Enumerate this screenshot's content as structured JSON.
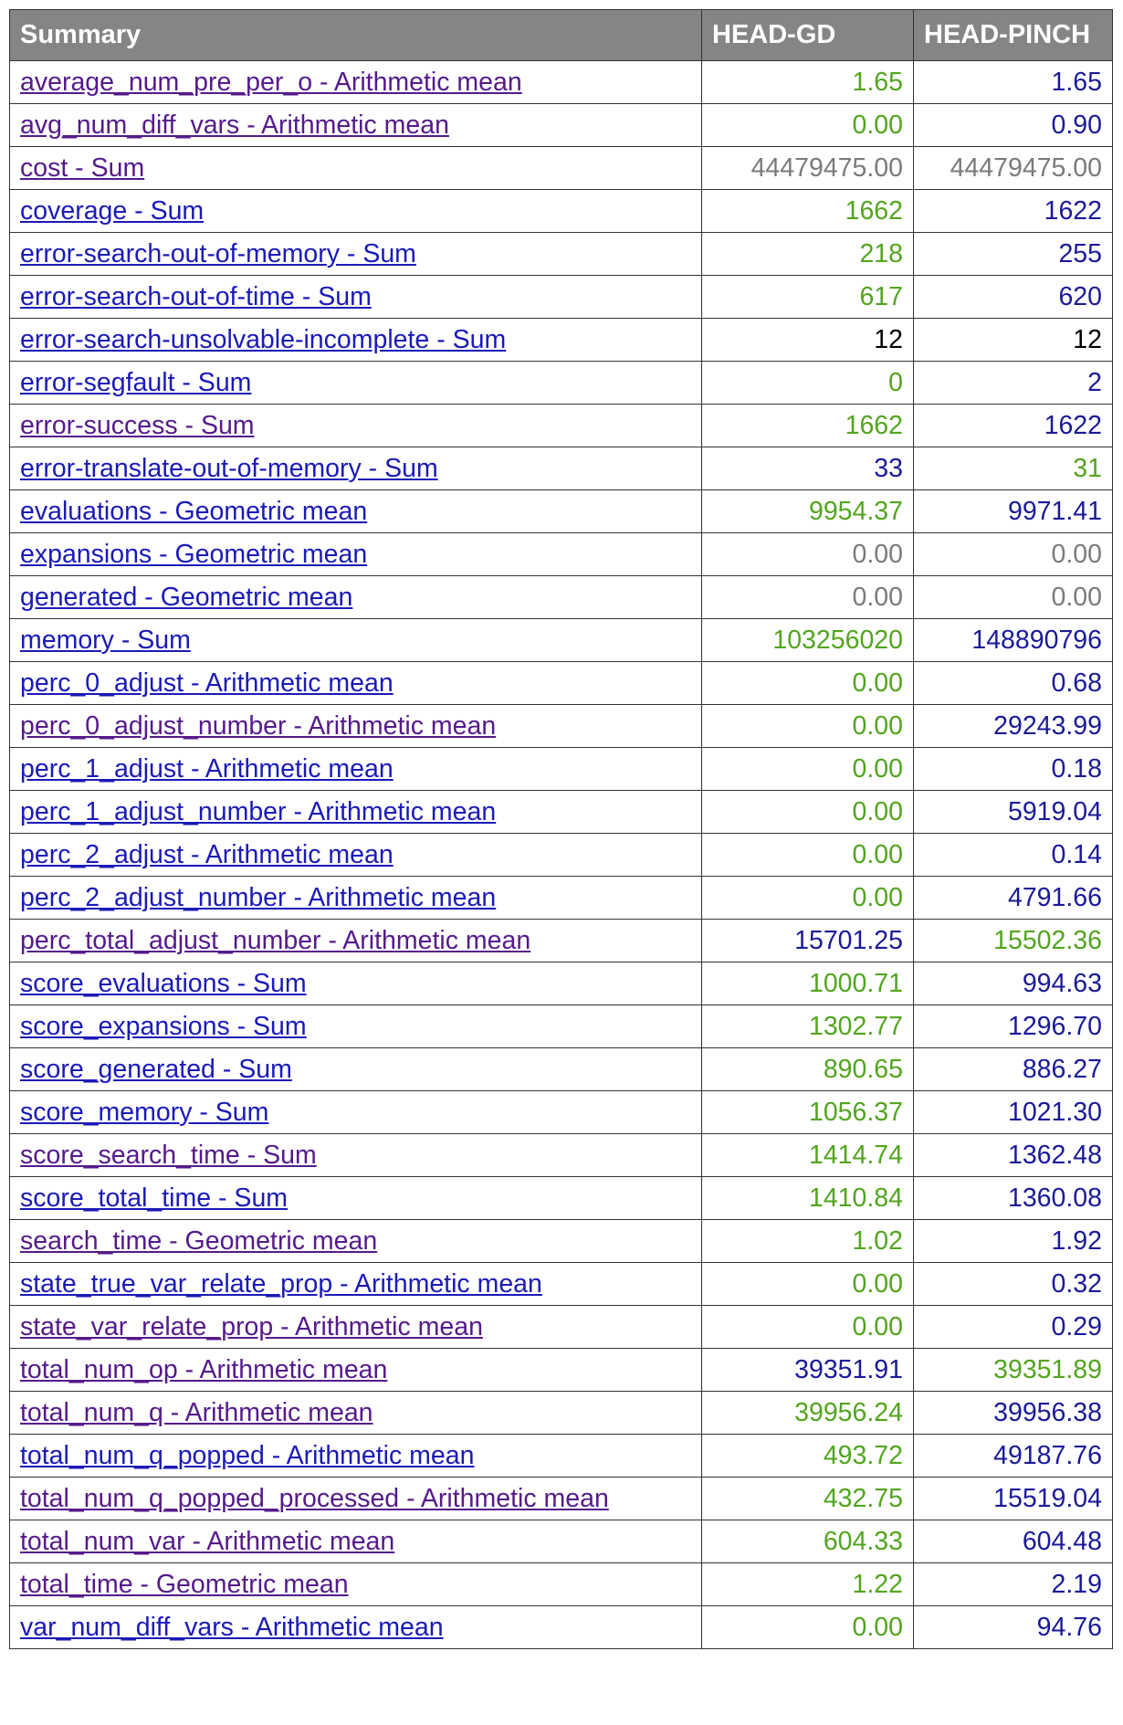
{
  "table": {
    "headers": [
      "Summary",
      "HEAD-GD",
      "HEAD-PINCH"
    ],
    "colors": {
      "green": "#52a51e",
      "blue": "#1a1a99",
      "grey": "#7a7a7a",
      "black": "#000000",
      "link": "#1a1ab8",
      "visited_link": "#551a8b",
      "header_bg": "#858585"
    },
    "rows": [
      {
        "name": "average_num_pre_per_o - Arithmetic mean",
        "link": "visited",
        "gd": "1.65",
        "gd_color": "green",
        "pinch": "1.65",
        "pinch_color": "blue"
      },
      {
        "name": "avg_num_diff_vars - Arithmetic mean",
        "link": "visited",
        "gd": "0.00",
        "gd_color": "green",
        "pinch": "0.90",
        "pinch_color": "blue"
      },
      {
        "name": "cost - Sum",
        "link": "visited",
        "gd": "44479475.00",
        "gd_color": "grey",
        "pinch": "44479475.00",
        "pinch_color": "grey"
      },
      {
        "name": "coverage - Sum",
        "link": "unvisited",
        "gd": "1662",
        "gd_color": "green",
        "pinch": "1622",
        "pinch_color": "blue"
      },
      {
        "name": "error-search-out-of-memory - Sum",
        "link": "unvisited",
        "gd": "218",
        "gd_color": "green",
        "pinch": "255",
        "pinch_color": "blue"
      },
      {
        "name": "error-search-out-of-time - Sum",
        "link": "unvisited",
        "gd": "617",
        "gd_color": "green",
        "pinch": "620",
        "pinch_color": "blue"
      },
      {
        "name": "error-search-unsolvable-incomplete - Sum",
        "link": "unvisited",
        "gd": "12",
        "gd_color": "black",
        "pinch": "12",
        "pinch_color": "black"
      },
      {
        "name": "error-segfault - Sum",
        "link": "unvisited",
        "gd": "0",
        "gd_color": "green",
        "pinch": "2",
        "pinch_color": "blue"
      },
      {
        "name": "error-success - Sum",
        "link": "visited",
        "gd": "1662",
        "gd_color": "green",
        "pinch": "1622",
        "pinch_color": "blue"
      },
      {
        "name": "error-translate-out-of-memory - Sum",
        "link": "unvisited",
        "gd": "33",
        "gd_color": "blue",
        "pinch": "31",
        "pinch_color": "green"
      },
      {
        "name": "evaluations - Geometric mean",
        "link": "unvisited",
        "gd": "9954.37",
        "gd_color": "green",
        "pinch": "9971.41",
        "pinch_color": "blue"
      },
      {
        "name": "expansions - Geometric mean",
        "link": "unvisited",
        "gd": "0.00",
        "gd_color": "grey",
        "pinch": "0.00",
        "pinch_color": "grey"
      },
      {
        "name": "generated - Geometric mean",
        "link": "unvisited",
        "gd": "0.00",
        "gd_color": "grey",
        "pinch": "0.00",
        "pinch_color": "grey"
      },
      {
        "name": "memory - Sum",
        "link": "unvisited",
        "gd": "103256020",
        "gd_color": "green",
        "pinch": "148890796",
        "pinch_color": "blue"
      },
      {
        "name": "perc_0_adjust - Arithmetic mean",
        "link": "unvisited",
        "gd": "0.00",
        "gd_color": "green",
        "pinch": "0.68",
        "pinch_color": "blue"
      },
      {
        "name": "perc_0_adjust_number - Arithmetic mean",
        "link": "visited",
        "gd": "0.00",
        "gd_color": "green",
        "pinch": "29243.99",
        "pinch_color": "blue"
      },
      {
        "name": "perc_1_adjust - Arithmetic mean",
        "link": "unvisited",
        "gd": "0.00",
        "gd_color": "green",
        "pinch": "0.18",
        "pinch_color": "blue"
      },
      {
        "name": "perc_1_adjust_number - Arithmetic mean",
        "link": "unvisited",
        "gd": "0.00",
        "gd_color": "green",
        "pinch": "5919.04",
        "pinch_color": "blue"
      },
      {
        "name": "perc_2_adjust - Arithmetic mean",
        "link": "unvisited",
        "gd": "0.00",
        "gd_color": "green",
        "pinch": "0.14",
        "pinch_color": "blue"
      },
      {
        "name": "perc_2_adjust_number - Arithmetic mean",
        "link": "unvisited",
        "gd": "0.00",
        "gd_color": "green",
        "pinch": "4791.66",
        "pinch_color": "blue"
      },
      {
        "name": "perc_total_adjust_number - Arithmetic mean",
        "link": "visited",
        "gd": "15701.25",
        "gd_color": "blue",
        "pinch": "15502.36",
        "pinch_color": "green"
      },
      {
        "name": "score_evaluations - Sum",
        "link": "unvisited",
        "gd": "1000.71",
        "gd_color": "green",
        "pinch": "994.63",
        "pinch_color": "blue"
      },
      {
        "name": "score_expansions - Sum",
        "link": "unvisited",
        "gd": "1302.77",
        "gd_color": "green",
        "pinch": "1296.70",
        "pinch_color": "blue"
      },
      {
        "name": "score_generated - Sum",
        "link": "unvisited",
        "gd": "890.65",
        "gd_color": "green",
        "pinch": "886.27",
        "pinch_color": "blue"
      },
      {
        "name": "score_memory - Sum",
        "link": "unvisited",
        "gd": "1056.37",
        "gd_color": "green",
        "pinch": "1021.30",
        "pinch_color": "blue"
      },
      {
        "name": "score_search_time - Sum",
        "link": "visited",
        "gd": "1414.74",
        "gd_color": "green",
        "pinch": "1362.48",
        "pinch_color": "blue"
      },
      {
        "name": "score_total_time - Sum",
        "link": "unvisited",
        "gd": "1410.84",
        "gd_color": "green",
        "pinch": "1360.08",
        "pinch_color": "blue"
      },
      {
        "name": "search_time - Geometric mean",
        "link": "visited",
        "gd": "1.02",
        "gd_color": "green",
        "pinch": "1.92",
        "pinch_color": "blue"
      },
      {
        "name": "state_true_var_relate_prop - Arithmetic mean",
        "link": "unvisited",
        "gd": "0.00",
        "gd_color": "green",
        "pinch": "0.32",
        "pinch_color": "blue"
      },
      {
        "name": "state_var_relate_prop - Arithmetic mean",
        "link": "visited",
        "gd": "0.00",
        "gd_color": "green",
        "pinch": "0.29",
        "pinch_color": "blue"
      },
      {
        "name": "total_num_op - Arithmetic mean",
        "link": "visited",
        "gd": "39351.91",
        "gd_color": "blue",
        "pinch": "39351.89",
        "pinch_color": "green"
      },
      {
        "name": "total_num_q - Arithmetic mean",
        "link": "visited",
        "gd": "39956.24",
        "gd_color": "green",
        "pinch": "39956.38",
        "pinch_color": "blue"
      },
      {
        "name": "total_num_q_popped - Arithmetic mean",
        "link": "unvisited",
        "gd": "493.72",
        "gd_color": "green",
        "pinch": "49187.76",
        "pinch_color": "blue"
      },
      {
        "name": "total_num_q_popped_processed - Arithmetic mean",
        "link": "visited",
        "gd": "432.75",
        "gd_color": "green",
        "pinch": "15519.04",
        "pinch_color": "blue"
      },
      {
        "name": "total_num_var - Arithmetic mean",
        "link": "visited",
        "gd": "604.33",
        "gd_color": "green",
        "pinch": "604.48",
        "pinch_color": "blue"
      },
      {
        "name": "total_time - Geometric mean",
        "link": "visited",
        "gd": "1.22",
        "gd_color": "green",
        "pinch": "2.19",
        "pinch_color": "blue"
      },
      {
        "name": "var_num_diff_vars - Arithmetic mean",
        "link": "unvisited",
        "gd": "0.00",
        "gd_color": "green",
        "pinch": "94.76",
        "pinch_color": "blue"
      }
    ]
  }
}
